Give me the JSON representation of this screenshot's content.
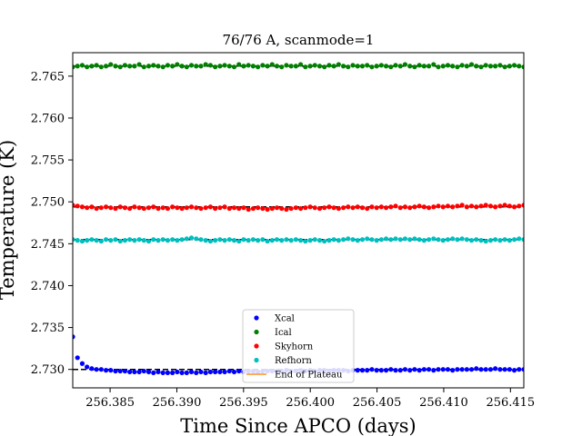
{
  "chart_data": {
    "type": "scatter",
    "title": "76/76 A, scanmode=1",
    "xlabel": "Time Since APCO (days)",
    "ylabel": "Temperature (K)",
    "xlim": [
      256.3822,
      256.416
    ],
    "ylim": [
      2.7278,
      2.7678
    ],
    "x_ticks": [
      256.385,
      256.39,
      256.395,
      256.4,
      256.405,
      256.41,
      256.415
    ],
    "x_tick_labels": [
      "256.385",
      "256.390",
      "256.395",
      "256.400",
      "256.405",
      "256.410",
      "256.415"
    ],
    "y_ticks": [
      2.73,
      2.735,
      2.74,
      2.745,
      2.75,
      2.755,
      2.76,
      2.765
    ],
    "y_tick_labels": [
      "2.730",
      "2.735",
      "2.740",
      "2.745",
      "2.750",
      "2.755",
      "2.760",
      "2.765"
    ],
    "grid": false,
    "legend_position": "bottom-center",
    "series": [
      {
        "name": "Xcal",
        "color": "#0000ff",
        "marker": "dot",
        "plateau": 2.73,
        "x_start": 256.3822,
        "x_end": 256.416,
        "n_points": 96,
        "values": [
          2.7339,
          2.7314,
          2.7307,
          2.7303,
          2.7301,
          2.73,
          2.73,
          2.7299,
          2.7299,
          2.7298,
          2.7298,
          2.7298,
          2.7297,
          2.7297,
          2.7297,
          2.7298,
          2.7297,
          2.7296,
          2.7297,
          2.7296,
          2.7296,
          2.7296,
          2.7297,
          2.7296,
          2.7296,
          2.7297,
          2.7296,
          2.7297,
          2.7296,
          2.7297,
          2.7297,
          2.7297,
          2.7297,
          2.7298,
          2.7297,
          2.7298,
          2.7297,
          2.7298,
          2.7298,
          2.7297,
          2.7298,
          2.7298,
          2.7298,
          2.7298,
          2.7298,
          2.7299,
          2.7298,
          2.7298,
          2.7299,
          2.7298,
          2.7299,
          2.7298,
          2.7299,
          2.7299,
          2.7298,
          2.7299,
          2.7299,
          2.7299,
          2.7298,
          2.7299,
          2.7299,
          2.7299,
          2.7299,
          2.73,
          2.7299,
          2.7299,
          2.7299,
          2.73,
          2.7299,
          2.7299,
          2.73,
          2.7299,
          2.73,
          2.7299,
          2.73,
          2.73,
          2.7299,
          2.73,
          2.73,
          2.73,
          2.7299,
          2.73,
          2.73,
          2.73,
          2.73,
          2.7301,
          2.73,
          2.73,
          2.73,
          2.7301,
          2.73,
          2.73,
          2.73,
          2.7299,
          2.73,
          2.73
        ]
      },
      {
        "name": "Ical",
        "color": "#008000",
        "marker": "dot",
        "plateau": 2.7662,
        "x_start": 256.3822,
        "x_end": 256.416,
        "n_points": 96,
        "values": [
          2.7661,
          2.7662,
          2.7663,
          2.7661,
          2.7662,
          2.7663,
          2.7661,
          2.7662,
          2.7664,
          2.7662,
          2.7661,
          2.7663,
          2.7662,
          2.7662,
          2.7664,
          2.7661,
          2.7662,
          2.7663,
          2.7662,
          2.7661,
          2.7663,
          2.7662,
          2.7664,
          2.7662,
          2.7661,
          2.7663,
          2.7662,
          2.7662,
          2.7664,
          2.7663,
          2.7661,
          2.7662,
          2.7663,
          2.7662,
          2.7661,
          2.7664,
          2.7662,
          2.7663,
          2.7662,
          2.7661,
          2.7663,
          2.7662,
          2.7664,
          2.7662,
          2.7661,
          2.7663,
          2.7662,
          2.7662,
          2.7664,
          2.7661,
          2.7662,
          2.7663,
          2.7662,
          2.7661,
          2.7663,
          2.7662,
          2.7664,
          2.7662,
          2.7661,
          2.7663,
          2.7662,
          2.7662,
          2.7663,
          2.7661,
          2.7662,
          2.7663,
          2.7662,
          2.7661,
          2.7663,
          2.7662,
          2.7664,
          2.7662,
          2.7661,
          2.7663,
          2.7662,
          2.7662,
          2.7664,
          2.7661,
          2.7662,
          2.7663,
          2.7662,
          2.7661,
          2.7663,
          2.7662,
          2.7664,
          2.7662,
          2.7661,
          2.7663,
          2.7662,
          2.7662,
          2.7663,
          2.7661,
          2.7662,
          2.7663,
          2.7662,
          2.7661
        ]
      },
      {
        "name": "Skyhorn",
        "color": "#ff0000",
        "marker": "dot",
        "plateau": 2.7494,
        "x_start": 256.3822,
        "x_end": 256.416,
        "n_points": 96,
        "values": [
          2.7496,
          2.7495,
          2.7494,
          2.7493,
          2.7494,
          2.7492,
          2.7493,
          2.7494,
          2.7493,
          2.7492,
          2.7494,
          2.7493,
          2.7492,
          2.7494,
          2.7493,
          2.7492,
          2.7493,
          2.7494,
          2.7492,
          2.7493,
          2.7492,
          2.7494,
          2.7493,
          2.7492,
          2.7493,
          2.7494,
          2.7493,
          2.7492,
          2.7493,
          2.7494,
          2.7492,
          2.7493,
          2.7494,
          2.7492,
          2.7493,
          2.7492,
          2.7493,
          2.7491,
          2.7492,
          2.7493,
          2.7492,
          2.7491,
          2.7492,
          2.7493,
          2.7492,
          2.7491,
          2.7492,
          2.7493,
          2.7492,
          2.7493,
          2.7494,
          2.7493,
          2.7492,
          2.7493,
          2.7494,
          2.7493,
          2.7492,
          2.7493,
          2.7494,
          2.7493,
          2.7494,
          2.7493,
          2.7492,
          2.7494,
          2.7493,
          2.7494,
          2.7493,
          2.7494,
          2.7495,
          2.7493,
          2.7494,
          2.7493,
          2.7494,
          2.7495,
          2.7494,
          2.7493,
          2.7494,
          2.7495,
          2.7494,
          2.7495,
          2.7494,
          2.7495,
          2.7496,
          2.7494,
          2.7495,
          2.7494,
          2.7495,
          2.7496,
          2.7495,
          2.7494,
          2.7495,
          2.7496,
          2.7495,
          2.7494,
          2.7495,
          2.7496
        ]
      },
      {
        "name": "Refhorn",
        "color": "#00bfbf",
        "marker": "dot",
        "plateau": 2.7455,
        "x_start": 256.3822,
        "x_end": 256.416,
        "n_points": 96,
        "values": [
          2.7455,
          2.7454,
          2.7453,
          2.7454,
          2.7455,
          2.7454,
          2.7453,
          2.7455,
          2.7454,
          2.7455,
          2.7453,
          2.7454,
          2.7455,
          2.7454,
          2.7455,
          2.7454,
          2.7453,
          2.7455,
          2.7454,
          2.7455,
          2.7454,
          2.7455,
          2.7454,
          2.7455,
          2.7456,
          2.7457,
          2.7456,
          2.7455,
          2.7454,
          2.7453,
          2.7454,
          2.7455,
          2.7454,
          2.7455,
          2.7454,
          2.7453,
          2.7455,
          2.7454,
          2.7455,
          2.7454,
          2.7455,
          2.7453,
          2.7454,
          2.7455,
          2.7454,
          2.7455,
          2.7454,
          2.7455,
          2.7454,
          2.7453,
          2.7454,
          2.7455,
          2.7454,
          2.7453,
          2.7454,
          2.7455,
          2.7454,
          2.7455,
          2.7456,
          2.7455,
          2.7454,
          2.7455,
          2.7456,
          2.7455,
          2.7454,
          2.7455,
          2.7456,
          2.7455,
          2.7456,
          2.7455,
          2.7456,
          2.7455,
          2.7456,
          2.7455,
          2.7454,
          2.7455,
          2.7456,
          2.7455,
          2.7454,
          2.7455,
          2.7456,
          2.7455,
          2.7456,
          2.7455,
          2.7454,
          2.7455,
          2.7454,
          2.7453,
          2.7454,
          2.7455,
          2.7454,
          2.7455,
          2.7454,
          2.7455,
          2.7456,
          2.7455
        ]
      }
    ],
    "legend_entries": [
      {
        "name": "Xcal",
        "color": "#0000ff"
      },
      {
        "name": "Ical",
        "color": "#008000"
      },
      {
        "name": "Skyhorn",
        "color": "#ff0000"
      },
      {
        "name": "Refhorn",
        "color": "#00bfbf"
      },
      {
        "name": "End of Plateau",
        "color": "#ff9f40"
      }
    ]
  }
}
